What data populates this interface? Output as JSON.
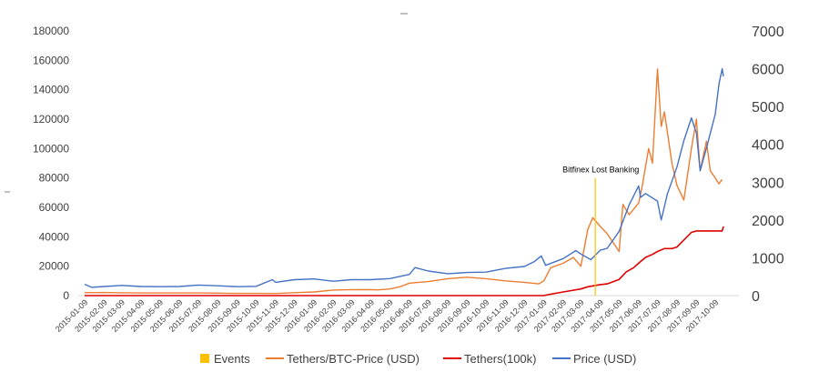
{
  "chart_data": {
    "type": "line",
    "title": "",
    "xlabel": "",
    "ylabel": "",
    "y_left_lim": [
      0,
      180000
    ],
    "y_left_ticks": [
      "0",
      "20000",
      "40000",
      "60000",
      "80000",
      "100000",
      "120000",
      "140000",
      "160000",
      "180000"
    ],
    "y_right_lim": [
      0,
      7000
    ],
    "y_right_ticks": [
      "0",
      "1000",
      "2000",
      "3000",
      "4000",
      "5000",
      "6000",
      "7000"
    ],
    "x_ticks": [
      "2015-01-09",
      "2015-02-09",
      "2015-03-09",
      "2015-04-09",
      "2015-05-09",
      "2015-06-09",
      "2015-07-09",
      "2015-08-09",
      "2015-09-09",
      "2015-10-09",
      "2015-11-09",
      "2015-12-09",
      "2016-01-09",
      "2016-02-09",
      "2016-03-09",
      "2016-04-09",
      "2016-05-09",
      "2016-06-09",
      "2016-07-09",
      "2016-08-09",
      "2016-09-09",
      "2016-10-09",
      "2016-11-09",
      "2016-12-09",
      "2017-01-09",
      "2017-02-09",
      "2017-03-09",
      "2017-04-09",
      "2017-05-09",
      "2017-06-09",
      "2017-07-09",
      "2017-08-09",
      "2017-09-09",
      "2017-10-09"
    ],
    "grid": false,
    "legend_position": "bottom",
    "annotation": {
      "label": "Bitfinex Lost Banking",
      "x": "2017-04-01",
      "series": "Events"
    },
    "series": [
      {
        "name": "Events",
        "color": "#FFC000",
        "type": "event-marker",
        "values": [
          {
            "x": "2017-04-01",
            "y": 80000
          }
        ]
      },
      {
        "name": "Tethers/BTC-Price (USD)",
        "color": "#ED7D31",
        "axis": "left",
        "points": [
          [
            "2015-01-09",
            2000
          ],
          [
            "2015-02-09",
            2100
          ],
          [
            "2015-03-09",
            1900
          ],
          [
            "2015-04-09",
            1800
          ],
          [
            "2015-05-09",
            1800
          ],
          [
            "2015-06-09",
            1800
          ],
          [
            "2015-07-09",
            1800
          ],
          [
            "2015-08-09",
            1700
          ],
          [
            "2015-09-09",
            1500
          ],
          [
            "2015-10-09",
            1500
          ],
          [
            "2015-11-09",
            1400
          ],
          [
            "2015-12-09",
            2000
          ],
          [
            "2016-01-09",
            2500
          ],
          [
            "2016-02-09",
            3800
          ],
          [
            "2016-03-09",
            4000
          ],
          [
            "2016-04-09",
            4000
          ],
          [
            "2016-04-20",
            3900
          ],
          [
            "2016-05-09",
            4500
          ],
          [
            "2016-05-25",
            6000
          ],
          [
            "2016-06-09",
            8500
          ],
          [
            "2016-07-09",
            9500
          ],
          [
            "2016-08-09",
            11500
          ],
          [
            "2016-09-09",
            12500
          ],
          [
            "2016-10-09",
            11500
          ],
          [
            "2016-11-09",
            10000
          ],
          [
            "2016-12-09",
            9000
          ],
          [
            "2017-01-01",
            8000
          ],
          [
            "2017-01-09",
            10000
          ],
          [
            "2017-01-20",
            19000
          ],
          [
            "2017-02-09",
            22000
          ],
          [
            "2017-02-25",
            26000
          ],
          [
            "2017-03-09",
            20000
          ],
          [
            "2017-03-20",
            45000
          ],
          [
            "2017-03-28",
            53000
          ],
          [
            "2017-04-09",
            47000
          ],
          [
            "2017-04-20",
            42000
          ],
          [
            "2017-05-01",
            35000
          ],
          [
            "2017-05-09",
            30000
          ],
          [
            "2017-05-15",
            62000
          ],
          [
            "2017-05-25",
            55000
          ],
          [
            "2017-06-09",
            63000
          ],
          [
            "2017-06-15",
            75000
          ],
          [
            "2017-06-25",
            100000
          ],
          [
            "2017-07-01",
            90000
          ],
          [
            "2017-07-09",
            154000
          ],
          [
            "2017-07-15",
            115000
          ],
          [
            "2017-07-20",
            125000
          ],
          [
            "2017-08-01",
            90000
          ],
          [
            "2017-08-09",
            75000
          ],
          [
            "2017-08-20",
            65000
          ],
          [
            "2017-09-01",
            100000
          ],
          [
            "2017-09-09",
            120000
          ],
          [
            "2017-09-15",
            85000
          ],
          [
            "2017-09-25",
            105000
          ],
          [
            "2017-10-01",
            85000
          ],
          [
            "2017-10-09",
            80000
          ],
          [
            "2017-10-15",
            76000
          ],
          [
            "2017-10-20",
            79000
          ]
        ]
      },
      {
        "name": "Tethers(100k)",
        "color": "#E00000",
        "axis": "left",
        "points": [
          [
            "2015-01-09",
            0
          ],
          [
            "2016-03-09",
            0
          ],
          [
            "2017-01-09",
            0
          ],
          [
            "2017-01-20",
            1000
          ],
          [
            "2017-02-09",
            2500
          ],
          [
            "2017-03-09",
            4500
          ],
          [
            "2017-03-20",
            6000
          ],
          [
            "2017-04-09",
            7500
          ],
          [
            "2017-04-20",
            8000
          ],
          [
            "2017-05-09",
            11000
          ],
          [
            "2017-05-20",
            16000
          ],
          [
            "2017-06-01",
            19000
          ],
          [
            "2017-06-09",
            22000
          ],
          [
            "2017-06-20",
            26000
          ],
          [
            "2017-07-01",
            28000
          ],
          [
            "2017-07-09",
            30000
          ],
          [
            "2017-07-20",
            32000
          ],
          [
            "2017-08-01",
            32000
          ],
          [
            "2017-08-09",
            33000
          ],
          [
            "2017-09-01",
            43000
          ],
          [
            "2017-09-09",
            44000
          ],
          [
            "2017-10-01",
            44000
          ],
          [
            "2017-10-20",
            44000
          ],
          [
            "2017-10-22",
            47000
          ]
        ]
      },
      {
        "name": "Price (USD)",
        "color": "#4472C4",
        "axis": "right",
        "points": [
          [
            "2015-01-09",
            300
          ],
          [
            "2015-01-20",
            220
          ],
          [
            "2015-02-09",
            240
          ],
          [
            "2015-03-09",
            270
          ],
          [
            "2015-04-09",
            240
          ],
          [
            "2015-05-09",
            235
          ],
          [
            "2015-06-09",
            240
          ],
          [
            "2015-07-09",
            280
          ],
          [
            "2015-08-09",
            260
          ],
          [
            "2015-09-09",
            235
          ],
          [
            "2015-10-09",
            245
          ],
          [
            "2015-11-04",
            420
          ],
          [
            "2015-11-09",
            350
          ],
          [
            "2015-12-09",
            420
          ],
          [
            "2016-01-09",
            440
          ],
          [
            "2016-02-09",
            380
          ],
          [
            "2016-03-09",
            420
          ],
          [
            "2016-04-09",
            420
          ],
          [
            "2016-05-09",
            450
          ],
          [
            "2016-06-09",
            560
          ],
          [
            "2016-06-18",
            740
          ],
          [
            "2016-07-09",
            650
          ],
          [
            "2016-08-09",
            580
          ],
          [
            "2016-09-09",
            610
          ],
          [
            "2016-10-09",
            620
          ],
          [
            "2016-11-09",
            720
          ],
          [
            "2016-12-09",
            770
          ],
          [
            "2016-12-25",
            900
          ],
          [
            "2017-01-05",
            1050
          ],
          [
            "2017-01-12",
            800
          ],
          [
            "2017-02-09",
            980
          ],
          [
            "2017-03-01",
            1190
          ],
          [
            "2017-03-09",
            1100
          ],
          [
            "2017-03-25",
            950
          ],
          [
            "2017-04-09",
            1200
          ],
          [
            "2017-04-20",
            1250
          ],
          [
            "2017-05-09",
            1700
          ],
          [
            "2017-05-25",
            2400
          ],
          [
            "2017-06-09",
            2900
          ],
          [
            "2017-06-12",
            2600
          ],
          [
            "2017-06-20",
            2700
          ],
          [
            "2017-07-09",
            2500
          ],
          [
            "2017-07-15",
            2000
          ],
          [
            "2017-07-25",
            2700
          ],
          [
            "2017-08-09",
            3400
          ],
          [
            "2017-08-20",
            4100
          ],
          [
            "2017-09-01",
            4700
          ],
          [
            "2017-09-09",
            4300
          ],
          [
            "2017-09-15",
            3300
          ],
          [
            "2017-09-25",
            3900
          ],
          [
            "2017-10-09",
            4800
          ],
          [
            "2017-10-15",
            5600
          ],
          [
            "2017-10-20",
            6000
          ],
          [
            "2017-10-22",
            5800
          ]
        ]
      }
    ]
  }
}
